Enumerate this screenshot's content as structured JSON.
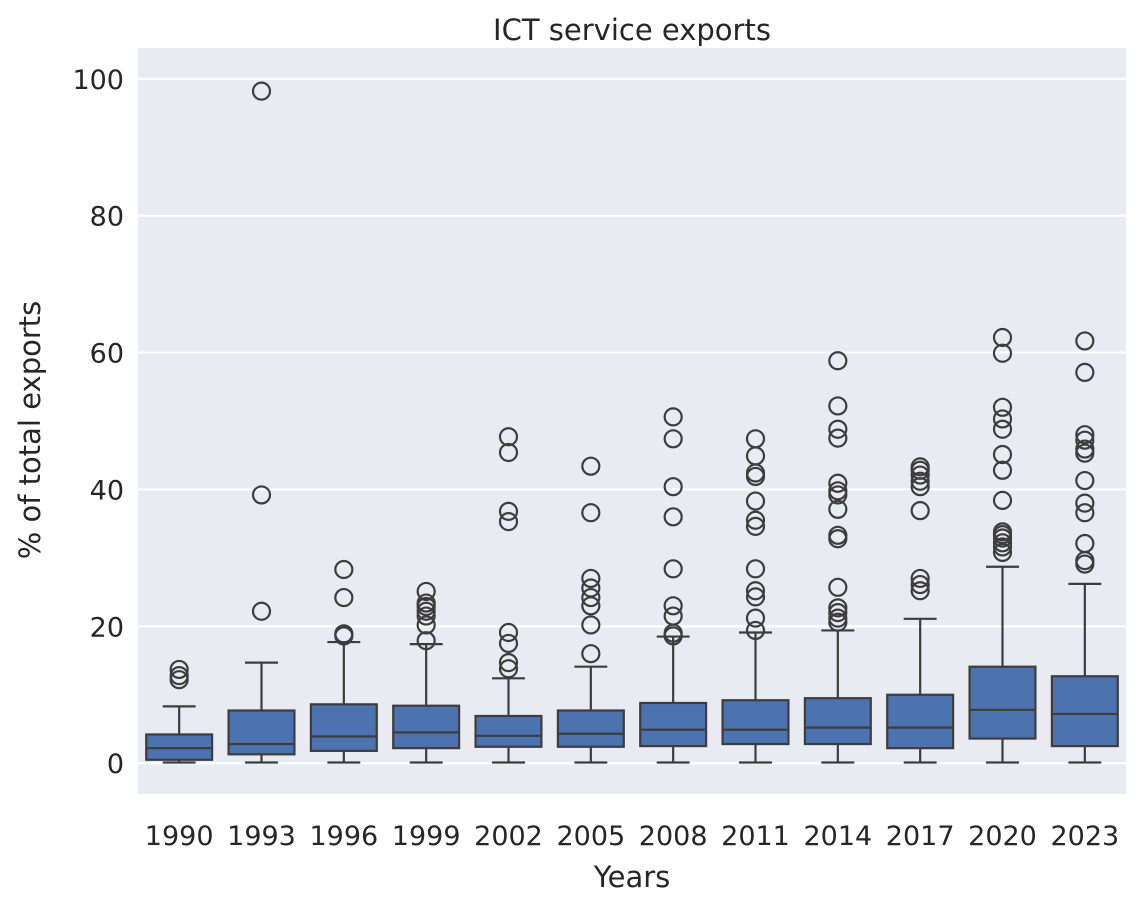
{
  "chart_data": {
    "type": "box",
    "title": "ICT service exports",
    "xlabel": "Years",
    "ylabel": "% of total exports",
    "ylim": [
      -4.5,
      104.5
    ],
    "yticks": [
      0,
      20,
      40,
      60,
      80,
      100
    ],
    "grid": true,
    "colors": {
      "plot_background": "#eaeaf2",
      "box_fill": "#4c72b0",
      "line": "#3d3d3d",
      "grid": "#ffffff"
    },
    "categories": [
      "1990",
      "1993",
      "1996",
      "1999",
      "2002",
      "2005",
      "2008",
      "2011",
      "2014",
      "2017",
      "2020",
      "2023"
    ],
    "boxes": [
      {
        "year": "1990",
        "whisker_low": 0.1,
        "q1": 0.5,
        "median": 2.2,
        "q3": 4.2,
        "whisker_high": 8.3,
        "outliers": [
          12.2,
          12.8,
          13.7
        ]
      },
      {
        "year": "1993",
        "whisker_low": 0.1,
        "q1": 1.3,
        "median": 2.8,
        "q3": 7.7,
        "whisker_high": 14.7,
        "outliers": [
          22.2,
          39.2,
          98.2
        ]
      },
      {
        "year": "1996",
        "whisker_low": 0.1,
        "q1": 1.8,
        "median": 3.9,
        "q3": 8.6,
        "whisker_high": 17.7,
        "outliers": [
          18.6,
          18.9,
          24.2,
          28.3
        ]
      },
      {
        "year": "1999",
        "whisker_low": 0.1,
        "q1": 2.2,
        "median": 4.5,
        "q3": 8.4,
        "whisker_high": 17.4,
        "outliers": [
          17.9,
          20.2,
          21.5,
          22.2,
          22.9,
          23.4,
          25.1
        ]
      },
      {
        "year": "2002",
        "whisker_low": 0.1,
        "q1": 2.4,
        "median": 4.0,
        "q3": 6.9,
        "whisker_high": 12.4,
        "outliers": [
          13.8,
          14.7,
          17.5,
          19.1,
          35.3,
          36.8,
          45.4,
          47.7
        ]
      },
      {
        "year": "2005",
        "whisker_low": 0.1,
        "q1": 2.4,
        "median": 4.3,
        "q3": 7.7,
        "whisker_high": 14.1,
        "outliers": [
          16.0,
          20.2,
          23.0,
          24.2,
          25.6,
          27.0,
          36.6,
          43.4
        ]
      },
      {
        "year": "2008",
        "whisker_low": 0.1,
        "q1": 2.5,
        "median": 4.9,
        "q3": 8.8,
        "whisker_high": 18.5,
        "outliers": [
          18.6,
          19.0,
          21.5,
          23.0,
          28.4,
          36.0,
          40.4,
          47.4,
          50.6
        ]
      },
      {
        "year": "2011",
        "whisker_low": 0.1,
        "q1": 2.8,
        "median": 4.9,
        "q3": 9.2,
        "whisker_high": 19.1,
        "outliers": [
          19.4,
          21.2,
          24.3,
          25.2,
          28.4,
          34.6,
          35.5,
          38.3,
          41.9,
          42.4,
          44.9,
          47.4
        ]
      },
      {
        "year": "2014",
        "whisker_low": 0.1,
        "q1": 2.8,
        "median": 5.2,
        "q3": 9.5,
        "whisker_high": 19.4,
        "outliers": [
          20.6,
          21.2,
          22.0,
          22.7,
          25.7,
          32.8,
          33.3,
          37.1,
          39.2,
          39.8,
          40.9,
          47.5,
          48.8,
          52.2,
          58.8
        ]
      },
      {
        "year": "2017",
        "whisker_low": 0.1,
        "q1": 2.2,
        "median": 5.2,
        "q3": 10.0,
        "whisker_high": 21.1,
        "outliers": [
          25.2,
          26.1,
          27.0,
          36.9,
          40.4,
          41.2,
          42.1,
          42.8,
          43.3
        ]
      },
      {
        "year": "2020",
        "whisker_low": 0.1,
        "q1": 3.6,
        "median": 7.8,
        "q3": 14.1,
        "whisker_high": 28.7,
        "outliers": [
          30.8,
          31.6,
          32.2,
          32.9,
          33.4,
          33.8,
          38.4,
          42.8,
          45.1,
          48.8,
          50.3,
          52.0,
          59.9,
          62.2
        ]
      },
      {
        "year": "2023",
        "whisker_low": 0.1,
        "q1": 2.5,
        "median": 7.2,
        "q3": 12.7,
        "whisker_high": 26.2,
        "outliers": [
          29.1,
          29.6,
          32.1,
          36.6,
          38.0,
          41.3,
          45.3,
          45.9,
          47.2,
          48.0,
          57.1,
          61.7
        ]
      }
    ]
  }
}
